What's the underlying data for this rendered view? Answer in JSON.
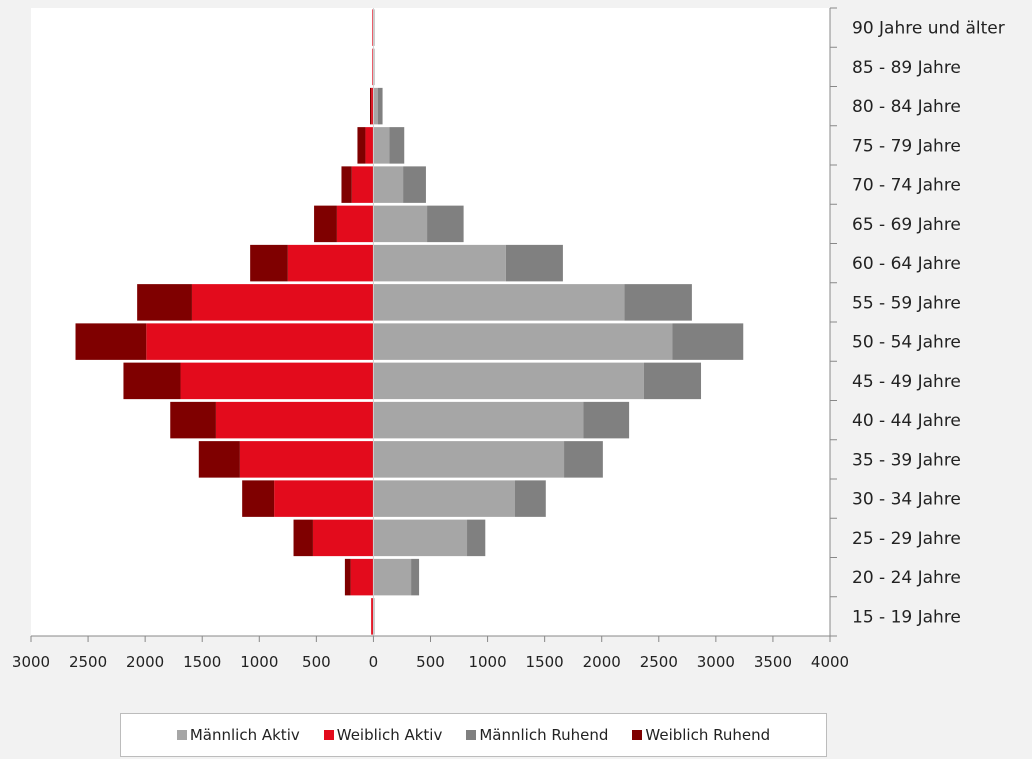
{
  "chart_data": {
    "type": "bar",
    "orientation": "horizontal",
    "layout": "population-pyramid-stacked",
    "categories": [
      "15 - 19 Jahre",
      "20 - 24 Jahre",
      "25 - 29 Jahre",
      "30 - 34 Jahre",
      "35 - 39 Jahre",
      "40 - 44 Jahre",
      "45 - 49 Jahre",
      "50 - 54 Jahre",
      "55 - 59 Jahre",
      "60 - 64 Jahre",
      "65 - 69 Jahre",
      "70 - 74 Jahre",
      "75 - 79 Jahre",
      "80 - 84 Jahre",
      "85 - 89 Jahre",
      "90 Jahre und älter"
    ],
    "series": [
      {
        "name": "Männlich Aktiv",
        "side": "right",
        "color": "#a6a6a6",
        "values": [
          10,
          330,
          820,
          1240,
          1670,
          1840,
          2370,
          2620,
          2200,
          1160,
          470,
          260,
          140,
          40,
          10,
          10
        ]
      },
      {
        "name": "Weiblich Aktiv",
        "side": "left",
        "color": "#e30b1c",
        "values": [
          20,
          200,
          530,
          870,
          1170,
          1380,
          1690,
          1990,
          1590,
          750,
          320,
          190,
          70,
          20,
          10,
          10
        ]
      },
      {
        "name": "Männlich Ruhend",
        "side": "right",
        "color": "#808080",
        "values": [
          0,
          70,
          160,
          270,
          340,
          400,
          500,
          620,
          590,
          500,
          320,
          200,
          130,
          40,
          0,
          0
        ]
      },
      {
        "name": "Weiblich Ruhend",
        "side": "left",
        "color": "#7f0000",
        "values": [
          0,
          50,
          170,
          280,
          360,
          400,
          500,
          620,
          480,
          330,
          200,
          90,
          70,
          10,
          0,
          0
        ]
      }
    ],
    "xlim": [
      -3000,
      4000
    ],
    "x_ticks": [
      -3000,
      -2500,
      -2000,
      -1500,
      -1000,
      -500,
      0,
      500,
      1000,
      1500,
      2000,
      2500,
      3000,
      3500,
      4000
    ],
    "x_tick_labels": [
      "3000",
      "2500",
      "2000",
      "1500",
      "1000",
      "500",
      "0",
      "500",
      "1000",
      "1500",
      "2000",
      "2500",
      "3000",
      "3500",
      "4000"
    ],
    "title": "",
    "xlabel": "",
    "ylabel": "",
    "legend_position": "bottom",
    "grid": false
  },
  "legend": {
    "items": [
      "Männlich Aktiv",
      "Weiblich Aktiv",
      "Männlich Ruhend",
      "Weiblich Ruhend"
    ],
    "colors": [
      "#a6a6a6",
      "#e30b1c",
      "#808080",
      "#7f0000"
    ]
  }
}
